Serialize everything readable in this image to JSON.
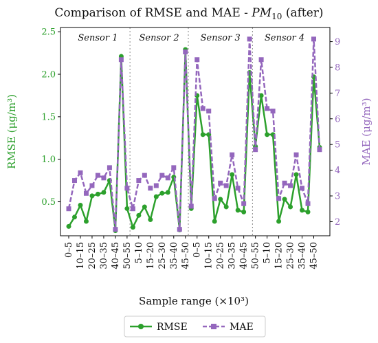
{
  "chart_data": {
    "type": "line",
    "title_prefix": "Comparison of RMSE and MAE - ",
    "title_pm": "PM",
    "title_sub": "10",
    "title_suffix": " (after)",
    "xlabel": "Sample range (×10³)",
    "ylabel_left": "RMSE (μg/m³)",
    "ylabel_right": "MAE (μg/m³)",
    "ylim_left": [
      0.1,
      2.55
    ],
    "ylim_right": [
      1.45,
      9.55
    ],
    "yticks_left": [
      "0.5",
      "1.0",
      "1.5",
      "2.0",
      "2.5"
    ],
    "yticks_left_values": [
      0.5,
      1.0,
      1.5,
      2.0,
      2.5
    ],
    "yticks_right": [
      "2",
      "3",
      "4",
      "5",
      "6",
      "7",
      "8",
      "9"
    ],
    "yticks_right_values": [
      2,
      3,
      4,
      5,
      6,
      7,
      8,
      9
    ],
    "sections": [
      {
        "label": "Sensor 1",
        "start": 0,
        "end": 10
      },
      {
        "label": "Sensor 2",
        "start": 11,
        "end": 20
      },
      {
        "label": "Sensor 3",
        "start": 21,
        "end": 31
      },
      {
        "label": "Sensor 4",
        "start": 32,
        "end": 42
      }
    ],
    "x_tick_labels": [
      "0–5",
      "10–15",
      "20–25",
      "30–35",
      "40–45",
      "50–55",
      "5–10",
      "15–20",
      "25–30",
      "35–40",
      "45–50",
      "0–5",
      "10–15",
      "20–25",
      "30–35",
      "40–45",
      "50–55",
      "5–10",
      "15–20",
      "25–30",
      "35–40",
      "45–50"
    ],
    "grid": false,
    "legend_position": "bottom-center",
    "series": [
      {
        "name": "RMSE",
        "axis": "left",
        "color": "#2ca02c",
        "style": "solid",
        "marker": "circle",
        "values": [
          0.21,
          0.32,
          0.46,
          0.27,
          0.57,
          0.59,
          0.61,
          0.75,
          0.16,
          2.21,
          0.42,
          0.2,
          0.34,
          0.44,
          0.29,
          0.56,
          0.6,
          0.61,
          0.79,
          0.17,
          2.29,
          0.42,
          1.75,
          1.29,
          1.29,
          0.27,
          0.53,
          0.44,
          0.82,
          0.4,
          0.38,
          2.02,
          1.15,
          1.75,
          1.29,
          1.29,
          0.27,
          0.53,
          0.44,
          0.82,
          0.4,
          0.38,
          1.97,
          1.14
        ]
      },
      {
        "name": "MAE",
        "axis": "right",
        "color": "#9467bd",
        "style": "dashed",
        "marker": "square",
        "values": [
          2.5,
          3.6,
          3.9,
          3.1,
          3.4,
          3.8,
          3.7,
          4.1,
          1.7,
          8.3,
          3.3,
          2.5,
          3.6,
          3.8,
          3.3,
          3.4,
          3.8,
          3.7,
          4.1,
          1.7,
          8.6,
          2.6,
          8.3,
          6.4,
          6.3,
          2.9,
          3.5,
          3.4,
          4.6,
          3.3,
          2.7,
          9.1,
          4.8,
          8.3,
          6.4,
          6.3,
          2.9,
          3.5,
          3.4,
          4.6,
          3.3,
          2.7,
          9.1,
          4.8
        ]
      }
    ]
  }
}
